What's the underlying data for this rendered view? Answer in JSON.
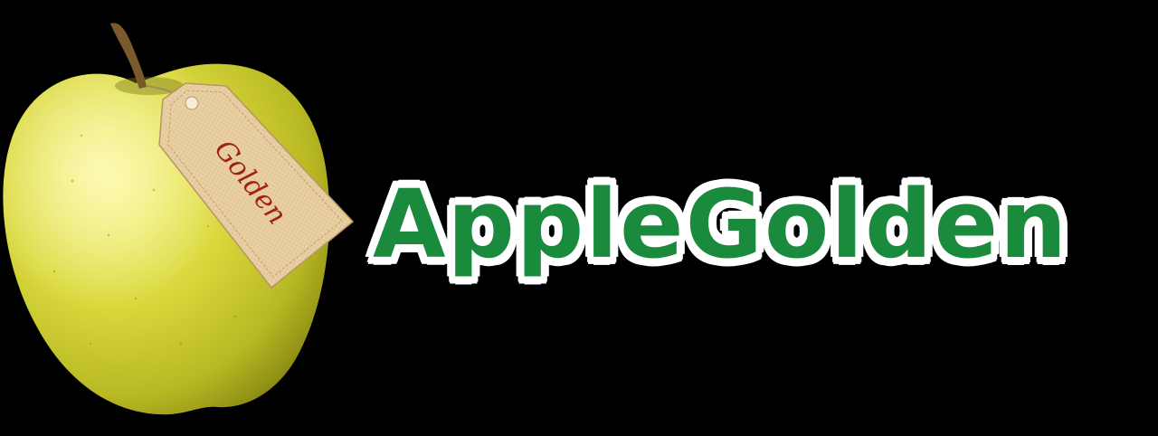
{
  "brand": {
    "title": "AppleGolden"
  },
  "tag": {
    "text": "Golden"
  },
  "colors": {
    "background": "#000000",
    "title_fill": "#1a8a3c",
    "title_outline": "#ffffff",
    "apple": "#d8d93a",
    "tag_paper": "#e8cfa3",
    "tag_text": "#a0201c"
  },
  "icons": {
    "apple": "apple-icon",
    "tag": "price-tag-icon"
  }
}
